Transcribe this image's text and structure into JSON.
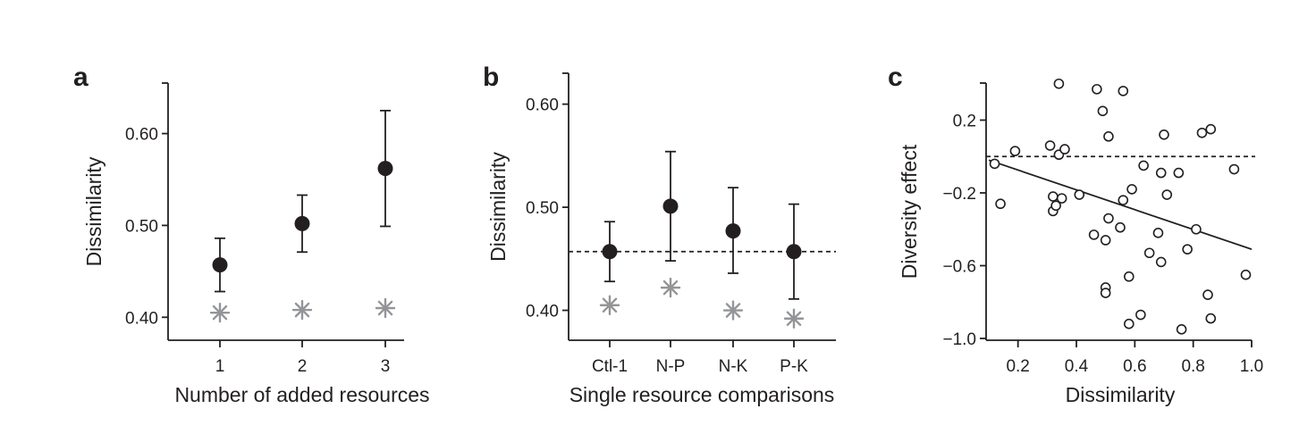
{
  "panels": [
    {
      "letter": "a"
    },
    {
      "letter": "b"
    },
    {
      "letter": "c"
    }
  ],
  "chart_data": [
    {
      "type": "scatter",
      "panel": "a",
      "xlabel": "Number of added resources",
      "ylabel": "Dissimilarity",
      "categories": [
        "1",
        "2",
        "3"
      ],
      "ylim": [
        0.375,
        0.655
      ],
      "yticks": [
        "0.40",
        "0.50",
        "0.60"
      ],
      "series": [
        {
          "values": [
            0.457,
            0.502,
            0.562
          ],
          "error_low": [
            0.428,
            0.471,
            0.499
          ],
          "error_high": [
            0.486,
            0.533,
            0.625
          ]
        },
        {
          "values": [
            0.405,
            0.408,
            0.41
          ]
        }
      ],
      "colors": {
        "mean": "#231f20",
        "null": "#939598"
      }
    },
    {
      "type": "scatter",
      "panel": "b",
      "xlabel": "Single resource comparisons",
      "ylabel": "Dissimilarity",
      "categories": [
        "Ctl-1",
        "N-P",
        "N-K",
        "P-K"
      ],
      "ylim": [
        0.371,
        0.63
      ],
      "yticks": [
        "0.40",
        "0.50",
        "0.60"
      ],
      "reference_line": 0.457,
      "series": [
        {
          "values": [
            0.457,
            0.501,
            0.477,
            0.457
          ],
          "error_low": [
            0.428,
            0.448,
            0.436,
            0.411
          ],
          "error_high": [
            0.486,
            0.554,
            0.519,
            0.503
          ]
        },
        {
          "values": [
            0.405,
            0.422,
            0.4,
            0.392
          ]
        }
      ],
      "colors": {
        "mean": "#231f20",
        "null": "#939598"
      }
    },
    {
      "type": "scatter",
      "panel": "c",
      "xlabel": "Dissimilarity",
      "ylabel": "Diversity effect",
      "xlim": [
        0.1,
        1.0
      ],
      "ylim": [
        -1.0,
        0.4
      ],
      "xticks": [
        "0.2",
        "0.4",
        "0.6",
        "0.8",
        "1.0"
      ],
      "yticks": [
        "0.2",
        "−0.2",
        "−0.6",
        "−1.0"
      ],
      "reference_line": 0.0,
      "fit_line": {
        "x": [
          0.1,
          1.0
        ],
        "y": [
          -0.02,
          -0.51
        ]
      },
      "points": [
        {
          "x": 0.12,
          "y": -0.04
        },
        {
          "x": 0.14,
          "y": -0.26
        },
        {
          "x": 0.19,
          "y": 0.03
        },
        {
          "x": 0.31,
          "y": 0.06
        },
        {
          "x": 0.32,
          "y": -0.22
        },
        {
          "x": 0.32,
          "y": -0.3
        },
        {
          "x": 0.33,
          "y": -0.27
        },
        {
          "x": 0.34,
          "y": 0.01
        },
        {
          "x": 0.34,
          "y": 0.4
        },
        {
          "x": 0.35,
          "y": -0.23
        },
        {
          "x": 0.36,
          "y": 0.04
        },
        {
          "x": 0.41,
          "y": -0.21
        },
        {
          "x": 0.46,
          "y": -0.43
        },
        {
          "x": 0.47,
          "y": 0.37
        },
        {
          "x": 0.49,
          "y": 0.25
        },
        {
          "x": 0.5,
          "y": -0.46
        },
        {
          "x": 0.5,
          "y": -0.72
        },
        {
          "x": 0.5,
          "y": -0.75
        },
        {
          "x": 0.51,
          "y": 0.11
        },
        {
          "x": 0.51,
          "y": -0.34
        },
        {
          "x": 0.55,
          "y": -0.39
        },
        {
          "x": 0.56,
          "y": -0.24
        },
        {
          "x": 0.56,
          "y": 0.36
        },
        {
          "x": 0.58,
          "y": -0.66
        },
        {
          "x": 0.58,
          "y": -0.92
        },
        {
          "x": 0.59,
          "y": -0.18
        },
        {
          "x": 0.62,
          "y": -0.87
        },
        {
          "x": 0.63,
          "y": -0.05
        },
        {
          "x": 0.65,
          "y": -0.53
        },
        {
          "x": 0.68,
          "y": -0.42
        },
        {
          "x": 0.69,
          "y": -0.58
        },
        {
          "x": 0.69,
          "y": -0.09
        },
        {
          "x": 0.7,
          "y": 0.12
        },
        {
          "x": 0.71,
          "y": -0.21
        },
        {
          "x": 0.75,
          "y": -0.09
        },
        {
          "x": 0.76,
          "y": -0.95
        },
        {
          "x": 0.78,
          "y": -0.51
        },
        {
          "x": 0.81,
          "y": -0.4
        },
        {
          "x": 0.83,
          "y": 0.13
        },
        {
          "x": 0.85,
          "y": -0.76
        },
        {
          "x": 0.86,
          "y": 0.15
        },
        {
          "x": 0.86,
          "y": -0.89
        },
        {
          "x": 0.94,
          "y": -0.07
        },
        {
          "x": 0.98,
          "y": -0.65
        }
      ],
      "colors": {
        "points": "#231f20"
      }
    }
  ]
}
